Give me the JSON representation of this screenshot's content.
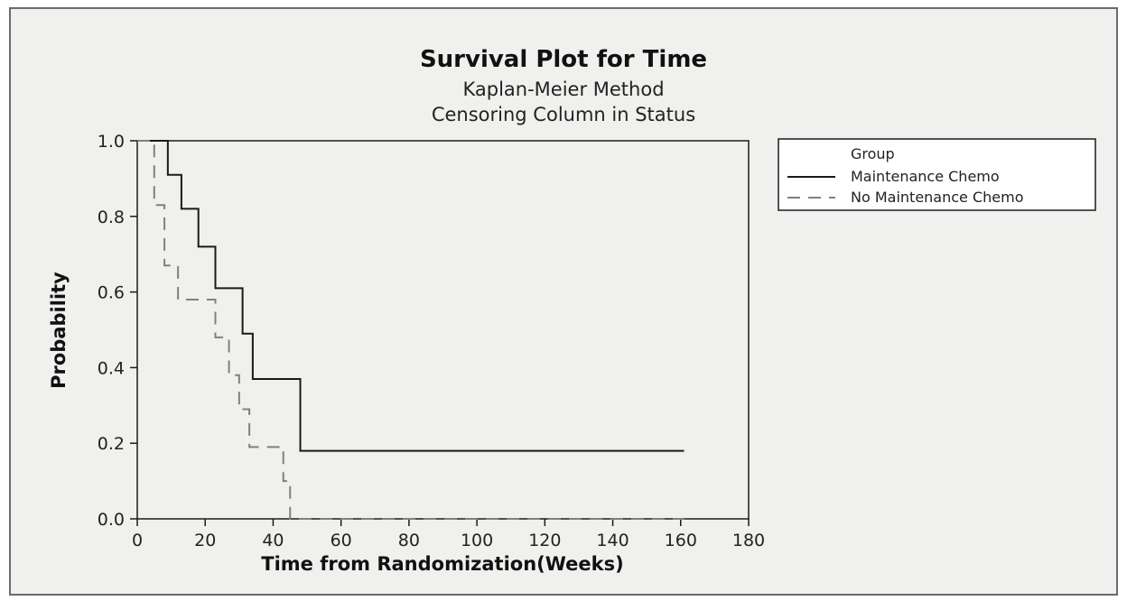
{
  "chart_data": {
    "type": "line",
    "title": "Survival Plot for Time",
    "subtitle": [
      "Kaplan-Meier Method",
      "Censoring Column in Status"
    ],
    "xlabel": "Time from Randomization(Weeks)",
    "ylabel": "Probability",
    "xlim": [
      0,
      180
    ],
    "ylim": [
      0,
      1
    ],
    "xticks": [
      0,
      20,
      40,
      60,
      80,
      100,
      120,
      140,
      160,
      180
    ],
    "yticks": [
      "0.0",
      "0.2",
      "0.4",
      "0.6",
      "0.8",
      "1.0"
    ],
    "grid": false,
    "legend": {
      "title": "Group",
      "position": "right",
      "entries": [
        "Maintenance Chemo",
        "No Maintenance Chemo"
      ]
    },
    "series": [
      {
        "name": "Maintenance Chemo",
        "style": "solid",
        "step": true,
        "x": [
          0,
          9,
          13,
          18,
          23,
          31,
          34,
          48,
          161
        ],
        "y": [
          1.0,
          0.91,
          0.82,
          0.72,
          0.61,
          0.49,
          0.37,
          0.18,
          0.18
        ]
      },
      {
        "name": "No Maintenance Chemo",
        "style": "dashed",
        "step": true,
        "x": [
          0,
          5,
          8,
          12,
          23,
          27,
          30,
          33,
          43,
          45,
          161
        ],
        "y": [
          1.0,
          0.83,
          0.67,
          0.58,
          0.48,
          0.38,
          0.29,
          0.19,
          0.1,
          0.0,
          0.0
        ]
      }
    ]
  },
  "colors": {
    "line": "#1a1a1a",
    "dashed": "#808080",
    "background": "#f0f0ee",
    "plot_background": "#f0f0ee"
  }
}
